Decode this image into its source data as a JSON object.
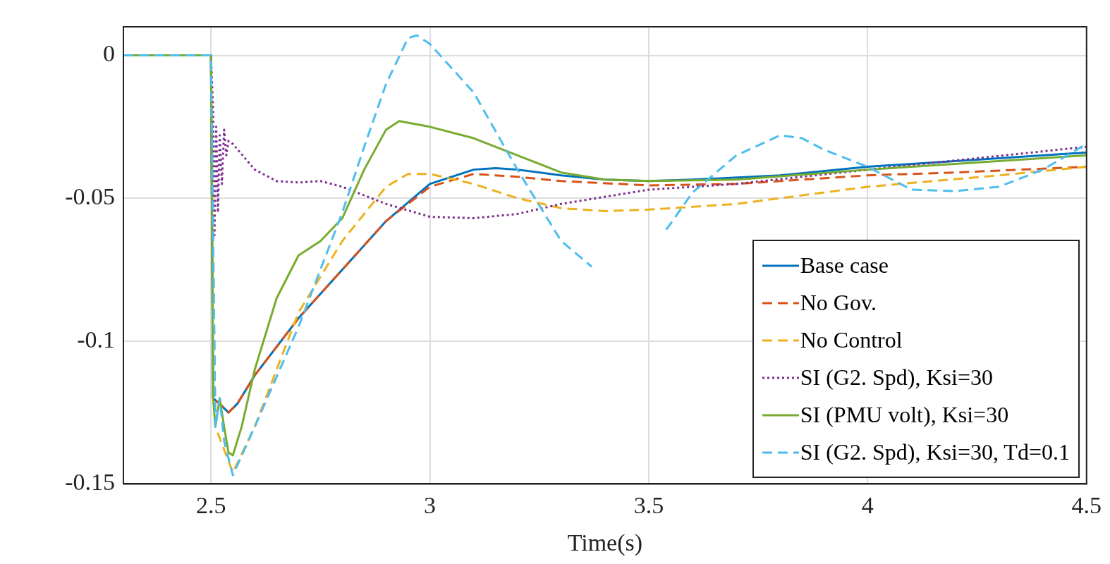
{
  "chart_data": {
    "type": "line",
    "xlabel": "Time(s)",
    "xlim": [
      2.3,
      4.5
    ],
    "ylim": [
      -0.15,
      0.01
    ],
    "xticks": [
      2.5,
      3,
      3.5,
      4,
      4.5
    ],
    "yticks": [
      -0.15,
      -0.1,
      -0.05,
      0
    ],
    "grid": true,
    "legend": "bottom right",
    "marker": "none",
    "series": [
      {
        "name": "Base case",
        "color": "#0072bd",
        "line_style": "solid",
        "x": [
          2.3,
          2.5,
          2.505,
          2.52,
          2.54,
          2.56,
          2.6,
          2.7,
          2.8,
          2.9,
          3.0,
          3.1,
          3.15,
          3.2,
          3.3,
          3.4,
          3.5,
          3.6,
          3.8,
          4.0,
          4.2,
          4.5
        ],
        "values": [
          0,
          0,
          -0.12,
          -0.122,
          -0.125,
          -0.122,
          -0.112,
          -0.092,
          -0.075,
          -0.058,
          -0.045,
          -0.04,
          -0.0395,
          -0.04,
          -0.042,
          -0.0435,
          -0.044,
          -0.0435,
          -0.042,
          -0.039,
          -0.037,
          -0.034
        ]
      },
      {
        "name": "No Gov.",
        "color": "#d95319",
        "line_style": "dashed",
        "x": [
          2.3,
          2.5,
          2.505,
          2.52,
          2.54,
          2.56,
          2.6,
          2.7,
          2.8,
          2.9,
          3.0,
          3.1,
          3.2,
          3.3,
          3.5,
          3.7,
          4.0,
          4.2,
          4.5
        ],
        "values": [
          0,
          0,
          -0.12,
          -0.122,
          -0.125,
          -0.122,
          -0.112,
          -0.092,
          -0.075,
          -0.058,
          -0.046,
          -0.0415,
          -0.0425,
          -0.044,
          -0.0455,
          -0.045,
          -0.042,
          -0.041,
          -0.039
        ]
      },
      {
        "name": "No Control",
        "color": "#edb120",
        "line_style": "dashed",
        "x": [
          2.3,
          2.5,
          2.51,
          2.55,
          2.6,
          2.65,
          2.7,
          2.8,
          2.9,
          2.95,
          3.0,
          3.1,
          3.2,
          3.3,
          3.4,
          3.5,
          3.7,
          4.0,
          4.3,
          4.5
        ],
        "values": [
          0,
          0,
          -0.13,
          -0.146,
          -0.13,
          -0.11,
          -0.09,
          -0.065,
          -0.046,
          -0.0415,
          -0.0415,
          -0.045,
          -0.05,
          -0.0535,
          -0.0545,
          -0.054,
          -0.052,
          -0.046,
          -0.042,
          -0.039
        ]
      },
      {
        "name": "SI (G2. Spd), Ksi=30",
        "color": "#7e2f8e",
        "line_style": "dotted",
        "x": [
          2.3,
          2.5,
          2.505,
          2.508,
          2.512,
          2.516,
          2.52,
          2.525,
          2.53,
          2.535,
          2.54,
          2.55,
          2.6,
          2.65,
          2.7,
          2.75,
          2.8,
          2.9,
          3.0,
          3.1,
          3.2,
          3.3,
          3.5,
          3.7,
          4.0,
          4.5
        ],
        "values": [
          0,
          0,
          -0.02,
          -0.063,
          -0.025,
          -0.055,
          -0.028,
          -0.045,
          -0.026,
          -0.035,
          -0.03,
          -0.031,
          -0.04,
          -0.044,
          -0.0445,
          -0.044,
          -0.046,
          -0.052,
          -0.0565,
          -0.057,
          -0.0555,
          -0.052,
          -0.047,
          -0.045,
          -0.04,
          -0.032
        ]
      },
      {
        "name": "SI (PMU volt), Ksi=30",
        "color": "#77ac30",
        "line_style": "solid",
        "x": [
          2.3,
          2.5,
          2.505,
          2.51,
          2.52,
          2.53,
          2.54,
          2.55,
          2.57,
          2.6,
          2.65,
          2.7,
          2.75,
          2.8,
          2.85,
          2.9,
          2.93,
          3.0,
          3.1,
          3.2,
          3.3,
          3.4,
          3.5,
          3.7,
          4.0,
          4.5
        ],
        "values": [
          0,
          0,
          -0.12,
          -0.13,
          -0.12,
          -0.13,
          -0.139,
          -0.14,
          -0.13,
          -0.11,
          -0.085,
          -0.07,
          -0.065,
          -0.057,
          -0.04,
          -0.026,
          -0.023,
          -0.025,
          -0.029,
          -0.035,
          -0.041,
          -0.0435,
          -0.044,
          -0.0435,
          -0.04,
          -0.035
        ]
      },
      {
        "name": "SI (G2. Spd), Ksi=30, Td=0.1",
        "color": "#4dbeee",
        "line_style": "dashed",
        "x": [
          2.3,
          2.5,
          2.51,
          2.52,
          2.53,
          2.55,
          2.6,
          2.7,
          2.8,
          2.85,
          2.9,
          2.95,
          2.97,
          3.0,
          3.1,
          3.2,
          3.3,
          3.37,
          3.45,
          3.54,
          3.6,
          3.7,
          3.8,
          3.85,
          3.9,
          4.0,
          4.1,
          4.2,
          4.3,
          4.4,
          4.5
        ],
        "values": [
          0,
          0,
          -0.13,
          -0.12,
          -0.135,
          -0.147,
          -0.13,
          -0.095,
          -0.055,
          -0.032,
          -0.01,
          0.006,
          0.007,
          0.004,
          -0.013,
          -0.04,
          -0.065,
          -0.074,
          null,
          -0.061,
          -0.048,
          -0.035,
          -0.028,
          -0.029,
          -0.033,
          -0.039,
          -0.047,
          -0.0475,
          -0.046,
          -0.04,
          -0.031
        ]
      }
    ]
  }
}
